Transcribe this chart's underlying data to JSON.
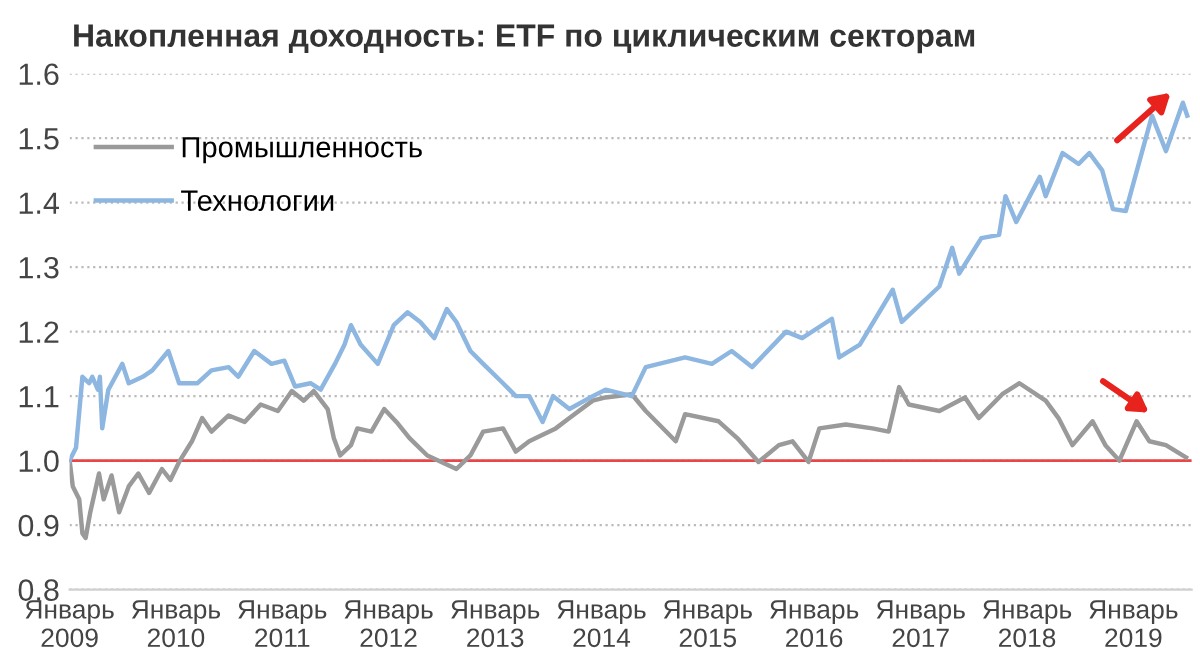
{
  "chart_data": {
    "type": "line",
    "title": "Накопленная доходность: ETF по циклическим секторам",
    "xlim": [
      "2009-01-01",
      "2019-07-20"
    ],
    "ylim": [
      0.8,
      1.6
    ],
    "yticks": [
      {
        "value": 0.8,
        "label": "0.8"
      },
      {
        "value": 0.9,
        "label": "0.9"
      },
      {
        "value": 1.0,
        "label": "1.0"
      },
      {
        "value": 1.1,
        "label": "1.1"
      },
      {
        "value": 1.2,
        "label": "1.2"
      },
      {
        "value": 1.3,
        "label": "1.3"
      },
      {
        "value": 1.4,
        "label": "1.4"
      },
      {
        "value": 1.5,
        "label": "1.5"
      },
      {
        "value": 1.6,
        "label": "1.6"
      }
    ],
    "xticks": [
      {
        "value": "2009-01-01",
        "label": "Январь\n2009"
      },
      {
        "value": "2010-01-01",
        "label": "Январь\n2010"
      },
      {
        "value": "2011-01-01",
        "label": "Январь\n2011"
      },
      {
        "value": "2012-01-01",
        "label": "Январь\n2012"
      },
      {
        "value": "2013-01-01",
        "label": "Январь\n2013"
      },
      {
        "value": "2014-01-01",
        "label": "Январь\n2014"
      },
      {
        "value": "2015-01-01",
        "label": "Январь\n2015"
      },
      {
        "value": "2016-01-01",
        "label": "Январь\n2016"
      },
      {
        "value": "2017-01-01",
        "label": "Январь\n2017"
      },
      {
        "value": "2018-01-01",
        "label": "Январь\n2018"
      },
      {
        "value": "2019-01-01",
        "label": "Январь\n2019"
      }
    ],
    "grid": "y",
    "legend": "top left",
    "ref_lines": [
      {
        "axis": "y",
        "value": 1.0,
        "color": "#e8474a"
      }
    ],
    "series": [
      {
        "name": "Промышленность",
        "color": "#9a9a9a",
        "x": [
          "2009-01-01",
          "2009-01-12",
          "2009-02-03",
          "2009-02-14",
          "2009-02-25",
          "2009-03-13",
          "2009-04-12",
          "2009-04-28",
          "2009-05-25",
          "2009-06-20",
          "2009-07-23",
          "2009-08-25",
          "2009-10-01",
          "2009-11-14",
          "2009-12-13",
          "2010-01-12",
          "2010-02-25",
          "2010-04-01",
          "2010-05-03",
          "2010-07-01",
          "2010-08-25",
          "2010-10-19",
          "2010-12-17",
          "2011-02-03",
          "2011-03-16",
          "2011-04-19",
          "2011-06-06",
          "2011-06-27",
          "2011-07-19",
          "2011-08-25",
          "2011-09-16",
          "2011-11-03",
          "2011-12-17",
          "2012-01-28",
          "2012-03-13",
          "2012-05-13",
          "2012-08-21",
          "2012-10-08",
          "2012-11-21",
          "2013-01-28",
          "2013-03-13",
          "2013-04-28",
          "2013-06-13",
          "2013-07-28",
          "2013-09-13",
          "2013-12-02",
          "2014-01-15",
          "2014-04-15",
          "2014-06-02",
          "2014-09-13",
          "2014-10-15",
          "2015-02-07",
          "2015-04-12",
          "2015-06-24",
          "2015-09-02",
          "2015-10-19",
          "2015-12-13",
          "2016-01-19",
          "2016-04-19",
          "2016-07-19",
          "2016-09-13",
          "2016-10-19",
          "2016-11-21",
          "2017-03-06",
          "2017-06-02",
          "2017-07-19",
          "2017-10-08",
          "2017-12-06",
          "2018-03-06",
          "2018-04-19",
          "2018-06-06",
          "2018-08-14",
          "2018-09-27",
          "2018-11-14",
          "2019-01-12",
          "2019-02-25",
          "2019-04-23",
          "2019-07-01"
        ],
        "values": [
          1.0,
          0.96,
          0.94,
          0.887,
          0.88,
          0.92,
          0.98,
          0.94,
          0.977,
          0.92,
          0.96,
          0.98,
          0.95,
          0.987,
          0.97,
          0.998,
          1.03,
          1.066,
          1.045,
          1.07,
          1.06,
          1.087,
          1.077,
          1.108,
          1.093,
          1.108,
          1.08,
          1.035,
          1.008,
          1.024,
          1.05,
          1.045,
          1.08,
          1.06,
          1.035,
          1.008,
          0.987,
          1.008,
          1.045,
          1.05,
          1.014,
          1.03,
          1.04,
          1.05,
          1.066,
          1.093,
          1.098,
          1.103,
          1.077,
          1.03,
          1.072,
          1.061,
          1.035,
          0.998,
          1.024,
          1.03,
          0.998,
          1.05,
          1.056,
          1.05,
          1.045,
          1.114,
          1.087,
          1.077,
          1.098,
          1.066,
          1.103,
          1.12,
          1.093,
          1.066,
          1.024,
          1.061,
          1.024,
          1.0,
          1.061,
          1.03,
          1.024,
          1.005
        ]
      },
      {
        "name": "Технологии",
        "color": "#8db6e0",
        "x": [
          "2009-01-01",
          "2009-01-23",
          "2009-02-14",
          "2009-03-09",
          "2009-03-20",
          "2009-04-08",
          "2009-04-15",
          "2009-04-23",
          "2009-05-14",
          "2009-07-01",
          "2009-07-23",
          "2009-09-09",
          "2009-10-12",
          "2009-12-06",
          "2010-01-12",
          "2010-03-16",
          "2010-05-03",
          "2010-07-01",
          "2010-08-03",
          "2010-09-27",
          "2010-11-25",
          "2011-01-08",
          "2011-02-14",
          "2011-04-08",
          "2011-05-13",
          "2011-07-01",
          "2011-08-03",
          "2011-08-25",
          "2011-09-27",
          "2011-11-25",
          "2012-01-19",
          "2012-03-06",
          "2012-04-19",
          "2012-06-06",
          "2012-07-19",
          "2012-08-21",
          "2012-10-08",
          "2012-11-21",
          "2013-01-28",
          "2013-03-13",
          "2013-04-28",
          "2013-06-13",
          "2013-07-19",
          "2013-09-13",
          "2013-12-02",
          "2014-01-15",
          "2014-04-15",
          "2014-06-02",
          "2014-10-15",
          "2015-01-15",
          "2015-03-24",
          "2015-06-02",
          "2015-09-27",
          "2015-11-21",
          "2016-03-02",
          "2016-03-27",
          "2016-06-06",
          "2016-09-27",
          "2016-10-28",
          "2017-03-06",
          "2017-04-19",
          "2017-05-13",
          "2017-07-28",
          "2017-09-27",
          "2017-10-19",
          "2017-11-25",
          "2018-02-14",
          "2018-03-06",
          "2018-05-03",
          "2018-06-27",
          "2018-08-03",
          "2018-09-16",
          "2018-10-23",
          "2018-12-06",
          "2019-01-23",
          "2019-03-06",
          "2019-04-23",
          "2019-06-20",
          "2019-07-05"
        ],
        "values": [
          1.0,
          1.02,
          1.13,
          1.12,
          1.13,
          1.11,
          1.13,
          1.05,
          1.11,
          1.15,
          1.12,
          1.13,
          1.14,
          1.17,
          1.12,
          1.12,
          1.14,
          1.145,
          1.13,
          1.17,
          1.15,
          1.155,
          1.115,
          1.12,
          1.11,
          1.15,
          1.18,
          1.21,
          1.18,
          1.15,
          1.21,
          1.23,
          1.215,
          1.19,
          1.235,
          1.215,
          1.17,
          1.15,
          1.12,
          1.1,
          1.1,
          1.06,
          1.1,
          1.08,
          1.1,
          1.11,
          1.1,
          1.145,
          1.16,
          1.15,
          1.17,
          1.145,
          1.2,
          1.19,
          1.22,
          1.16,
          1.18,
          1.265,
          1.215,
          1.27,
          1.33,
          1.29,
          1.345,
          1.35,
          1.41,
          1.37,
          1.44,
          1.41,
          1.477,
          1.46,
          1.477,
          1.45,
          1.39,
          1.387,
          1.466,
          1.535,
          1.48,
          1.555,
          1.535
        ]
      }
    ]
  }
}
